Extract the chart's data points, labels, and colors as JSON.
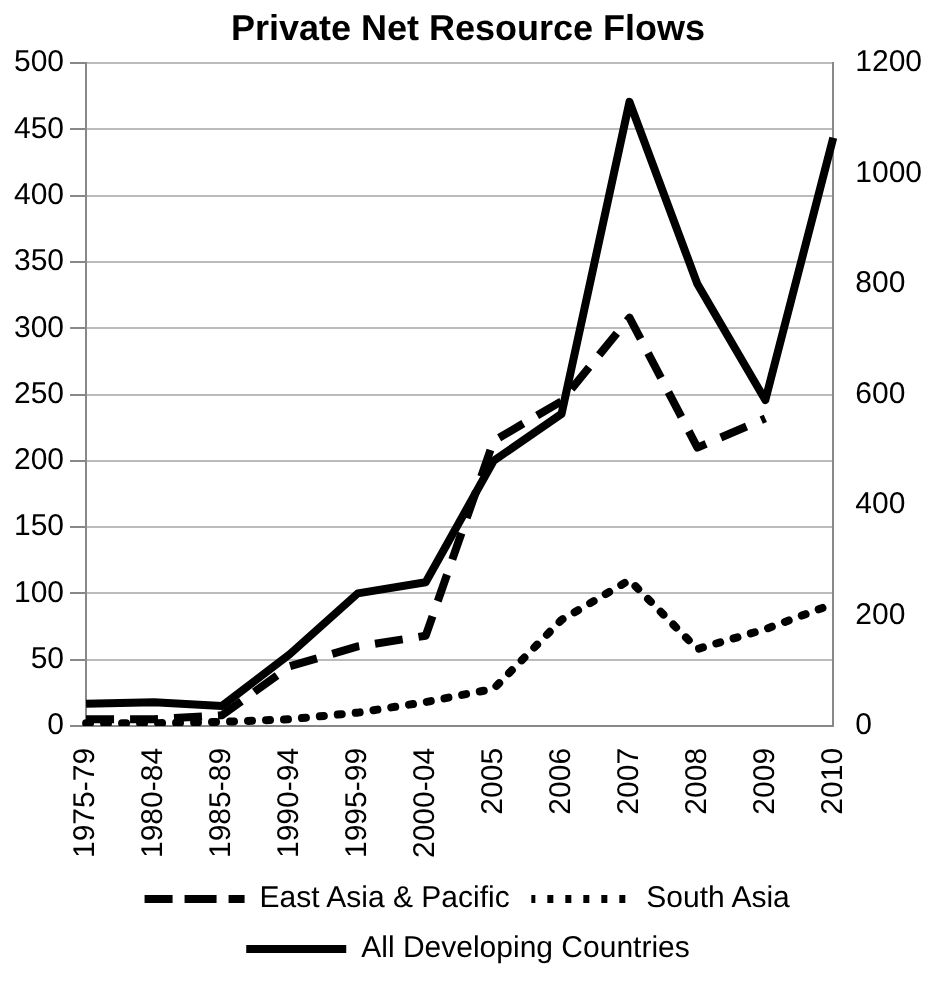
{
  "chart_data": {
    "type": "line",
    "title": "Private Net Resource Flows",
    "categories": [
      "1975-79",
      "1980-84",
      "1985-89",
      "1990-94",
      "1995-99",
      "2000-04",
      "2005",
      "2006",
      "2007",
      "2008",
      "2009",
      "2010"
    ],
    "series": [
      {
        "name": "East Asia & Pacific",
        "color": "#000000",
        "line_style": "dashed",
        "values": [
          5,
          5,
          8,
          45,
          60,
          68,
          215,
          245,
          308,
          210,
          232,
          null
        ]
      },
      {
        "name": "South Asia",
        "color": "#000000",
        "line_style": "dotted",
        "values": [
          2,
          2,
          3,
          5,
          10,
          18,
          28,
          80,
          110,
          58,
          73,
          92
        ]
      },
      {
        "name": "All Developing Countries",
        "color": "#000000",
        "line_style": "solid",
        "axis": "y2",
        "values": [
          40,
          43,
          36,
          130,
          240,
          260,
          480,
          565,
          1130,
          800,
          590,
          1065
        ]
      }
    ],
    "ylim": [
      0,
      500
    ],
    "yticks": [
      0,
      50,
      100,
      150,
      200,
      250,
      300,
      350,
      400,
      450,
      500
    ],
    "y2lim": [
      0,
      1200
    ],
    "y2ticks": [
      0,
      200,
      400,
      600,
      800,
      1000,
      1200
    ],
    "grid": "y",
    "legend": "bottom",
    "marker": "none"
  }
}
